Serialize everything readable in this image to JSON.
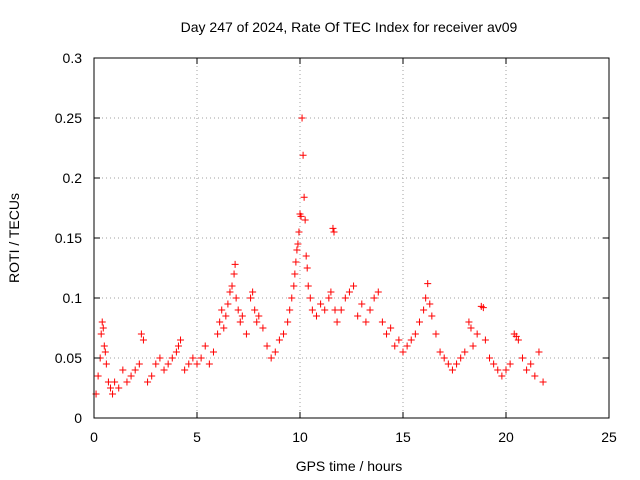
{
  "chart_data": {
    "type": "scatter",
    "title": "Day 247 of 2024, Rate Of TEC Index for receiver av09",
    "xlabel": "GPS time / hours",
    "ylabel": "ROTI / TECUs",
    "xlim": [
      0,
      25
    ],
    "ylim": [
      0,
      0.3
    ],
    "x_ticks": [
      0,
      5,
      10,
      15,
      20,
      25
    ],
    "x_tick_labels": [
      "0",
      "5",
      "10",
      "15",
      "20",
      "25"
    ],
    "y_ticks": [
      0,
      0.05,
      0.1,
      0.15,
      0.2,
      0.25,
      0.3
    ],
    "y_tick_labels": [
      "0",
      "0.05",
      "0.1",
      "0.15",
      "0.2",
      "0.25",
      "0.3"
    ],
    "grid": true,
    "marker": "plus",
    "color": "#ff0000",
    "series": [
      {
        "points": [
          [
            0.1,
            0.02
          ],
          [
            0.2,
            0.035
          ],
          [
            0.3,
            0.05
          ],
          [
            0.35,
            0.07
          ],
          [
            0.4,
            0.08
          ],
          [
            0.45,
            0.075
          ],
          [
            0.5,
            0.06
          ],
          [
            0.55,
            0.055
          ],
          [
            0.6,
            0.045
          ],
          [
            0.7,
            0.03
          ],
          [
            0.8,
            0.025
          ],
          [
            0.9,
            0.02
          ],
          [
            1.0,
            0.03
          ],
          [
            1.2,
            0.025
          ],
          [
            1.4,
            0.04
          ],
          [
            1.6,
            0.03
          ],
          [
            1.8,
            0.035
          ],
          [
            2.0,
            0.04
          ],
          [
            2.2,
            0.045
          ],
          [
            2.3,
            0.07
          ],
          [
            2.4,
            0.065
          ],
          [
            2.6,
            0.03
          ],
          [
            2.8,
            0.035
          ],
          [
            3.0,
            0.045
          ],
          [
            3.2,
            0.05
          ],
          [
            3.4,
            0.04
          ],
          [
            3.6,
            0.045
          ],
          [
            3.8,
            0.05
          ],
          [
            4.0,
            0.055
          ],
          [
            4.1,
            0.06
          ],
          [
            4.2,
            0.065
          ],
          [
            4.4,
            0.04
          ],
          [
            4.6,
            0.045
          ],
          [
            4.8,
            0.05
          ],
          [
            5.0,
            0.045
          ],
          [
            5.2,
            0.05
          ],
          [
            5.4,
            0.06
          ],
          [
            5.6,
            0.045
          ],
          [
            5.8,
            0.055
          ],
          [
            6.0,
            0.07
          ],
          [
            6.1,
            0.08
          ],
          [
            6.2,
            0.09
          ],
          [
            6.3,
            0.075
          ],
          [
            6.4,
            0.085
          ],
          [
            6.5,
            0.095
          ],
          [
            6.6,
            0.105
          ],
          [
            6.7,
            0.11
          ],
          [
            6.8,
            0.12
          ],
          [
            6.85,
            0.128
          ],
          [
            6.9,
            0.1
          ],
          [
            7.0,
            0.09
          ],
          [
            7.1,
            0.08
          ],
          [
            7.2,
            0.085
          ],
          [
            7.4,
            0.07
          ],
          [
            7.6,
            0.1
          ],
          [
            7.7,
            0.105
          ],
          [
            7.8,
            0.09
          ],
          [
            7.9,
            0.08
          ],
          [
            8.0,
            0.085
          ],
          [
            8.2,
            0.075
          ],
          [
            8.4,
            0.06
          ],
          [
            8.6,
            0.05
          ],
          [
            8.8,
            0.055
          ],
          [
            9.0,
            0.065
          ],
          [
            9.2,
            0.07
          ],
          [
            9.4,
            0.08
          ],
          [
            9.5,
            0.09
          ],
          [
            9.6,
            0.1
          ],
          [
            9.7,
            0.11
          ],
          [
            9.75,
            0.12
          ],
          [
            9.8,
            0.13
          ],
          [
            9.85,
            0.14
          ],
          [
            9.9,
            0.145
          ],
          [
            9.95,
            0.155
          ],
          [
            10.0,
            0.17
          ],
          [
            10.05,
            0.168
          ],
          [
            10.1,
            0.25
          ],
          [
            10.15,
            0.219
          ],
          [
            10.2,
            0.184
          ],
          [
            10.25,
            0.165
          ],
          [
            10.3,
            0.135
          ],
          [
            10.35,
            0.125
          ],
          [
            10.4,
            0.11
          ],
          [
            10.5,
            0.1
          ],
          [
            10.6,
            0.09
          ],
          [
            10.8,
            0.085
          ],
          [
            11.0,
            0.095
          ],
          [
            11.2,
            0.09
          ],
          [
            11.4,
            0.1
          ],
          [
            11.5,
            0.105
          ],
          [
            11.6,
            0.158
          ],
          [
            11.65,
            0.155
          ],
          [
            11.7,
            0.09
          ],
          [
            11.8,
            0.08
          ],
          [
            12.0,
            0.09
          ],
          [
            12.2,
            0.1
          ],
          [
            12.4,
            0.105
          ],
          [
            12.6,
            0.11
          ],
          [
            12.8,
            0.085
          ],
          [
            13.0,
            0.095
          ],
          [
            13.2,
            0.08
          ],
          [
            13.4,
            0.09
          ],
          [
            13.6,
            0.1
          ],
          [
            13.8,
            0.105
          ],
          [
            14.0,
            0.08
          ],
          [
            14.2,
            0.07
          ],
          [
            14.4,
            0.075
          ],
          [
            14.6,
            0.06
          ],
          [
            14.8,
            0.065
          ],
          [
            15.0,
            0.055
          ],
          [
            15.2,
            0.06
          ],
          [
            15.4,
            0.065
          ],
          [
            15.6,
            0.07
          ],
          [
            15.8,
            0.08
          ],
          [
            16.0,
            0.09
          ],
          [
            16.1,
            0.1
          ],
          [
            16.2,
            0.112
          ],
          [
            16.3,
            0.095
          ],
          [
            16.4,
            0.085
          ],
          [
            16.6,
            0.07
          ],
          [
            16.8,
            0.055
          ],
          [
            17.0,
            0.05
          ],
          [
            17.2,
            0.045
          ],
          [
            17.4,
            0.04
          ],
          [
            17.6,
            0.045
          ],
          [
            17.8,
            0.05
          ],
          [
            18.0,
            0.055
          ],
          [
            18.2,
            0.08
          ],
          [
            18.3,
            0.075
          ],
          [
            18.4,
            0.06
          ],
          [
            18.6,
            0.07
          ],
          [
            18.8,
            0.093
          ],
          [
            18.9,
            0.092
          ],
          [
            19.0,
            0.065
          ],
          [
            19.2,
            0.05
          ],
          [
            19.4,
            0.045
          ],
          [
            19.6,
            0.04
          ],
          [
            19.8,
            0.035
          ],
          [
            20.0,
            0.04
          ],
          [
            20.2,
            0.045
          ],
          [
            20.4,
            0.07
          ],
          [
            20.5,
            0.068
          ],
          [
            20.6,
            0.065
          ],
          [
            20.8,
            0.05
          ],
          [
            21.0,
            0.04
          ],
          [
            21.2,
            0.045
          ],
          [
            21.4,
            0.035
          ],
          [
            21.6,
            0.055
          ],
          [
            21.8,
            0.03
          ]
        ]
      }
    ]
  }
}
